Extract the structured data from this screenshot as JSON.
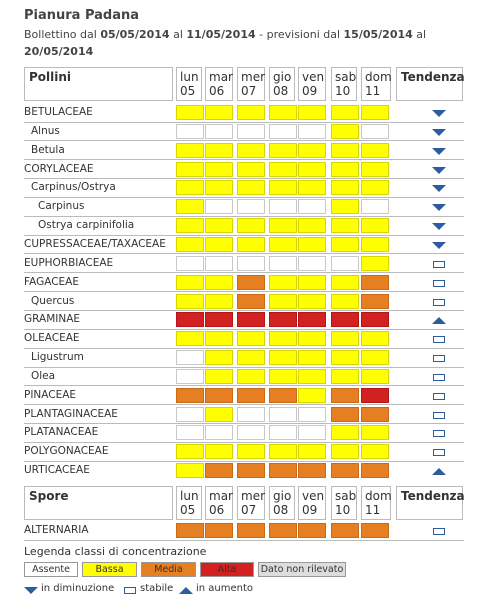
{
  "title": "Pianura Padana",
  "subtitle": {
    "p1": "Bollettino dal ",
    "d1": "05/05/2014",
    "p2": " al ",
    "d2": "11/05/2014",
    "p3": " - previsioni dal ",
    "d3": "15/05/2014",
    "p4": " al ",
    "d4": "20/05/2014"
  },
  "colors": {
    "assente": "#ffffff",
    "bassa": "#ffff00",
    "media": "#e67e22",
    "alta": "#d32020",
    "trend": "#2e5d9f"
  },
  "pollini_header": "Pollini",
  "spore_header": "Spore",
  "tendenza_header": "Tendenza",
  "days": [
    {
      "d": "lun",
      "n": "05"
    },
    {
      "d": "mar",
      "n": "06"
    },
    {
      "d": "mer",
      "n": "07"
    },
    {
      "d": "gio",
      "n": "08"
    },
    {
      "d": "ven",
      "n": "09"
    },
    {
      "d": "sab",
      "n": "10"
    },
    {
      "d": "dom",
      "n": "11"
    }
  ],
  "pollini": [
    {
      "name": "BETULACEAE",
      "indent": 0,
      "levels": [
        "B",
        "B",
        "B",
        "B",
        "B",
        "B",
        "B"
      ],
      "trend": "down"
    },
    {
      "name": "Alnus",
      "indent": 1,
      "levels": [
        "A",
        "A",
        "A",
        "A",
        "A",
        "B",
        "A"
      ],
      "trend": "down"
    },
    {
      "name": "Betula",
      "indent": 1,
      "levels": [
        "B",
        "B",
        "B",
        "B",
        "B",
        "B",
        "B"
      ],
      "trend": "down"
    },
    {
      "name": "CORYLACEAE",
      "indent": 0,
      "levels": [
        "B",
        "B",
        "B",
        "B",
        "B",
        "B",
        "B"
      ],
      "trend": "down"
    },
    {
      "name": "Carpinus/Ostrya",
      "indent": 1,
      "levels": [
        "B",
        "B",
        "B",
        "B",
        "B",
        "B",
        "B"
      ],
      "trend": "down"
    },
    {
      "name": "Carpinus",
      "indent": 2,
      "levels": [
        "B",
        "A",
        "A",
        "A",
        "A",
        "B",
        "A"
      ],
      "trend": "down"
    },
    {
      "name": "Ostrya carpinifolia",
      "indent": 2,
      "levels": [
        "B",
        "B",
        "B",
        "B",
        "B",
        "B",
        "B"
      ],
      "trend": "down"
    },
    {
      "name": "CUPRESSACEAE/TAXACEAE",
      "indent": 0,
      "levels": [
        "B",
        "B",
        "B",
        "B",
        "B",
        "B",
        "B"
      ],
      "trend": "down"
    },
    {
      "name": "EUPHORBIACEAE",
      "indent": 0,
      "levels": [
        "A",
        "A",
        "A",
        "A",
        "A",
        "A",
        "B"
      ],
      "trend": "stable"
    },
    {
      "name": "FAGACEAE",
      "indent": 0,
      "levels": [
        "B",
        "B",
        "M",
        "B",
        "B",
        "B",
        "M"
      ],
      "trend": "stable"
    },
    {
      "name": "Quercus",
      "indent": 1,
      "levels": [
        "B",
        "B",
        "M",
        "B",
        "B",
        "B",
        "M"
      ],
      "trend": "stable"
    },
    {
      "name": "GRAMINAE",
      "indent": 0,
      "levels": [
        "H",
        "H",
        "H",
        "H",
        "H",
        "H",
        "H"
      ],
      "trend": "up"
    },
    {
      "name": "OLEACEAE",
      "indent": 0,
      "levels": [
        "B",
        "B",
        "B",
        "B",
        "B",
        "B",
        "B"
      ],
      "trend": "stable"
    },
    {
      "name": "Ligustrum",
      "indent": 1,
      "levels": [
        "A",
        "B",
        "B",
        "B",
        "B",
        "B",
        "B"
      ],
      "trend": "stable"
    },
    {
      "name": "Olea",
      "indent": 1,
      "levels": [
        "A",
        "B",
        "B",
        "B",
        "B",
        "B",
        "B"
      ],
      "trend": "stable"
    },
    {
      "name": "PINACEAE",
      "indent": 0,
      "levels": [
        "M",
        "M",
        "M",
        "M",
        "B",
        "M",
        "H"
      ],
      "trend": "stable"
    },
    {
      "name": "PLANTAGINACEAE",
      "indent": 0,
      "levels": [
        "A",
        "B",
        "A",
        "A",
        "A",
        "M",
        "M"
      ],
      "trend": "stable"
    },
    {
      "name": "PLATANACEAE",
      "indent": 0,
      "levels": [
        "A",
        "A",
        "A",
        "A",
        "A",
        "B",
        "B"
      ],
      "trend": "stable"
    },
    {
      "name": "POLYGONACEAE",
      "indent": 0,
      "levels": [
        "B",
        "B",
        "B",
        "B",
        "B",
        "B",
        "B"
      ],
      "trend": "stable"
    },
    {
      "name": "URTICACEAE",
      "indent": 0,
      "levels": [
        "B",
        "M",
        "M",
        "M",
        "M",
        "M",
        "M"
      ],
      "trend": "up"
    }
  ],
  "spore": [
    {
      "name": "ALTERNARIA",
      "indent": 0,
      "levels": [
        "M",
        "M",
        "M",
        "M",
        "M",
        "M",
        "M"
      ],
      "trend": "stable"
    }
  ],
  "legend": {
    "title": "Legenda classi di concentrazione",
    "items": [
      {
        "label": "Assente",
        "cls": "assente"
      },
      {
        "label": "Bassa",
        "cls": "bassa"
      },
      {
        "label": "Media",
        "cls": "media"
      },
      {
        "label": "Alta",
        "cls": "alta"
      },
      {
        "label": "Dato non rilevato",
        "cls": "nd"
      }
    ],
    "trend_down": "in diminuzione",
    "trend_stable": "stabile",
    "trend_up": "in aumento"
  }
}
